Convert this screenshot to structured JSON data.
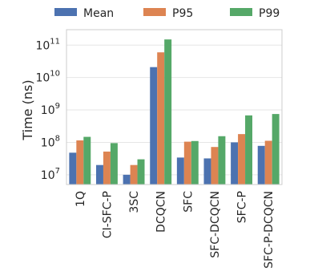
{
  "chart_data": {
    "type": "bar",
    "title": "",
    "xlabel": "",
    "ylabel": "Time (ns)",
    "yscale": "log",
    "ylim": [
      5000000,
      300000000000
    ],
    "legend_position": "top",
    "grid": "horizontal",
    "categories": [
      "1Q",
      "CI-SFC-P",
      "3SC",
      "DCQCN",
      "SFC",
      "SFC-DCQCN",
      "SFC-P",
      "SFC-P-DCQCN"
    ],
    "series": [
      {
        "name": "Mean",
        "color": "#4c72b0",
        "values": [
          48000000,
          20000000,
          10000000,
          21000000000,
          34000000,
          32000000,
          100000000,
          78000000
        ]
      },
      {
        "name": "P95",
        "color": "#dd8452",
        "values": [
          115000000,
          52000000,
          20000000,
          60000000000,
          105000000,
          72000000,
          180000000,
          112000000
        ]
      },
      {
        "name": "P99",
        "color": "#55a868",
        "values": [
          148000000,
          95000000,
          30000000,
          150000000000,
          110000000,
          155000000,
          680000000,
          750000000
        ]
      }
    ],
    "yticks": [
      {
        "value": 10000000,
        "base": "10",
        "exp": "7"
      },
      {
        "value": 100000000,
        "base": "10",
        "exp": "8"
      },
      {
        "value": 1000000000,
        "base": "10",
        "exp": "9"
      },
      {
        "value": 10000000000,
        "base": "10",
        "exp": "10"
      },
      {
        "value": 100000000000,
        "base": "10",
        "exp": "11"
      }
    ]
  }
}
